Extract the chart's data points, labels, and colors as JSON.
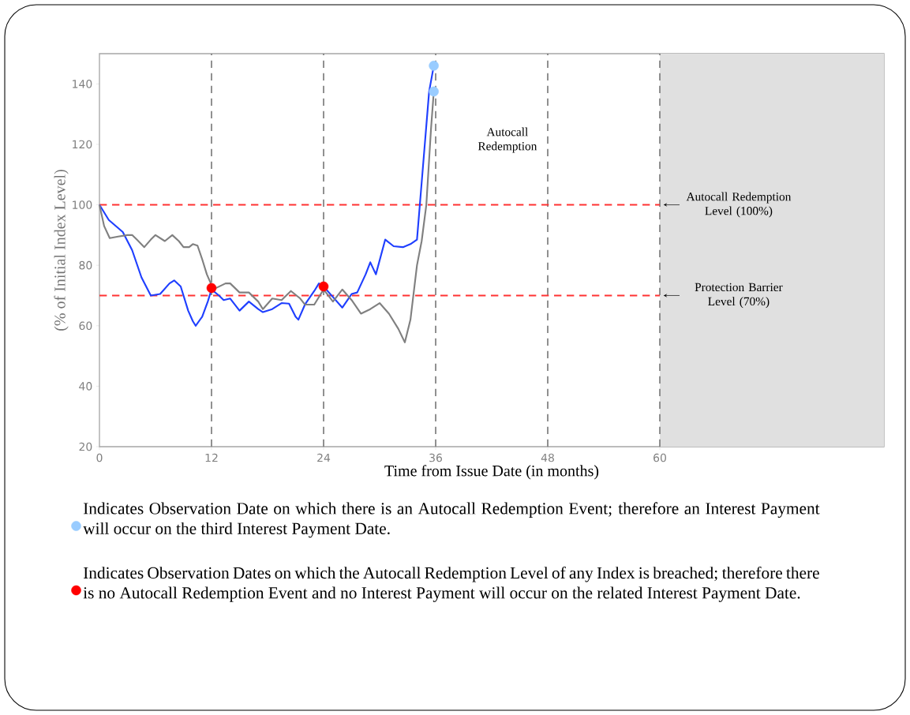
{
  "chart_data": {
    "type": "line",
    "xlabel": "Time from Issue Date (in months)",
    "ylabel": "(% of Initial Index Level)",
    "xlim": [
      0,
      84
    ],
    "ylim": [
      20,
      150
    ],
    "xticks": [
      0,
      12,
      24,
      36,
      48,
      60
    ],
    "yticks": [
      20,
      40,
      60,
      80,
      100,
      120,
      140
    ],
    "legend": "bottom",
    "series": [
      {
        "color": "#1f3fff",
        "x": [
          0,
          1,
          2.5,
          3.5,
          4.5,
          5.5,
          6.5,
          7.5,
          8,
          8.7,
          9.5,
          10,
          10.3,
          11,
          11.6,
          12,
          12.8,
          13.3,
          14,
          15,
          16,
          17,
          17.5,
          18.5,
          19.5,
          20.3,
          21,
          21.3,
          22,
          23,
          23.5,
          24,
          25,
          26,
          27,
          27.6,
          28.5,
          29,
          29.6,
          30.6,
          31.5,
          32.5,
          33.3,
          34,
          35.3,
          35.8
        ],
        "values": [
          100,
          95,
          91,
          85,
          76,
          70,
          70.5,
          74,
          75,
          73,
          65,
          61.5,
          60,
          63,
          68,
          72,
          70,
          68.5,
          69,
          65,
          68,
          65.5,
          64.5,
          65.5,
          67.5,
          67.3,
          63,
          62,
          67,
          71.5,
          74,
          73,
          69.5,
          66,
          70.5,
          71,
          77,
          81,
          77,
          88.5,
          86.3,
          86,
          87,
          88.5,
          137.5,
          146
        ]
      },
      {
        "color": "#808080",
        "x": [
          0,
          0.5,
          1.1,
          2,
          3,
          3.5,
          4,
          4.8,
          5.5,
          6,
          7,
          7.8,
          8.5,
          9,
          9.6,
          10,
          10.5,
          11,
          11.5,
          12,
          12.5,
          13.5,
          14,
          15,
          16,
          17,
          17.5,
          18.5,
          19.5,
          20.5,
          21.5,
          22,
          23,
          24,
          24.5,
          25,
          26,
          27,
          28,
          29,
          30,
          31,
          32,
          32.7,
          33.3,
          34,
          34.5,
          35,
          35.5,
          35.8
        ],
        "values": [
          100,
          93,
          89,
          89.5,
          90,
          90,
          88.5,
          86,
          88.5,
          90,
          88,
          90,
          88,
          86,
          86,
          87,
          86.5,
          82,
          77,
          73.5,
          72.5,
          74,
          74,
          71,
          71,
          68,
          65.5,
          69,
          68.5,
          71.5,
          69,
          67,
          67,
          72,
          70,
          68,
          72,
          68.5,
          64,
          65.5,
          67.5,
          64,
          59,
          54.5,
          62,
          80,
          88,
          100,
          125,
          137.5
        ]
      },
      {
        "type": "scatter",
        "name": "Indicates Observation Date on which there is an Autocall Redemption Event; therefore an Interest Payment will occur on the third Interest Payment Date.",
        "color": "#99ccff",
        "x": [
          35.8,
          35.8
        ],
        "values": [
          146,
          137.5
        ]
      },
      {
        "type": "scatter",
        "name": "Indicates Observation Dates on which the Autocall Redemption Level of any Index is breached; therefore there is no Autocall Redemption Event and no Interest Payment will occur on the related Interest Payment Date.",
        "color": "#ff0000",
        "x": [
          12,
          24
        ],
        "values": [
          72.5,
          73
        ]
      }
    ],
    "ref_lines": [
      {
        "axis": "x",
        "value": 12,
        "color": "#808080",
        "line_style": "dashed"
      },
      {
        "axis": "x",
        "value": 24,
        "color": "#808080",
        "line_style": "dashed"
      },
      {
        "axis": "x",
        "value": 36,
        "color": "#808080",
        "line_style": "dashed"
      },
      {
        "axis": "x",
        "value": 48,
        "color": "#808080",
        "line_style": "dashed"
      },
      {
        "axis": "x",
        "value": 60,
        "color": "#808080",
        "line_style": "dashed"
      },
      {
        "axis": "y",
        "value": 100,
        "label": "Autocall Redemption Level (100%)",
        "color": "#ff3333",
        "line_style": "dashed"
      },
      {
        "axis": "y",
        "value": 70,
        "label": "Protection Barrier Level (70%)",
        "color": "#ff3333",
        "line_style": "dashed"
      }
    ],
    "bands": [
      {
        "axis": "x",
        "from": 60,
        "to": 84,
        "color": "#e0e0e0"
      }
    ],
    "annotations": [
      "Autocall Redemption"
    ]
  }
}
